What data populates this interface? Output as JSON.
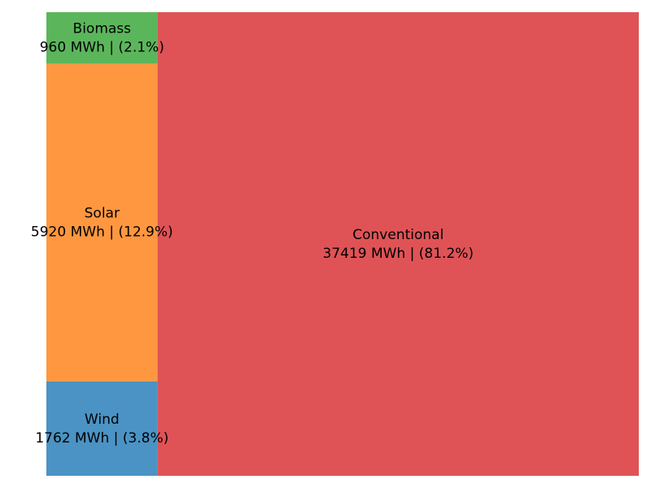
{
  "chart_data": {
    "type": "treemap",
    "unit": "MWh",
    "items": [
      {
        "name": "Wind",
        "value": 1762,
        "percent": "3.8%",
        "line1": "Wind",
        "line2": "1762 MWh | (3.8%)",
        "color": "#4b93c4"
      },
      {
        "name": "Solar",
        "value": 5920,
        "percent": "12.9%",
        "line1": "Solar",
        "line2": "5920 MWh | (12.9%)",
        "color": "#fe9740"
      },
      {
        "name": "Biomass",
        "value": 960,
        "percent": "2.1%",
        "line1": "Biomass",
        "line2": "960 MWh | (2.1%)",
        "color": "#5bb65b"
      },
      {
        "name": "Conventional",
        "value": 37419,
        "percent": "81.2%",
        "line1": "Conventional",
        "line2": "37419 MWh | (81.2%)",
        "color": "#df5356"
      }
    ]
  }
}
